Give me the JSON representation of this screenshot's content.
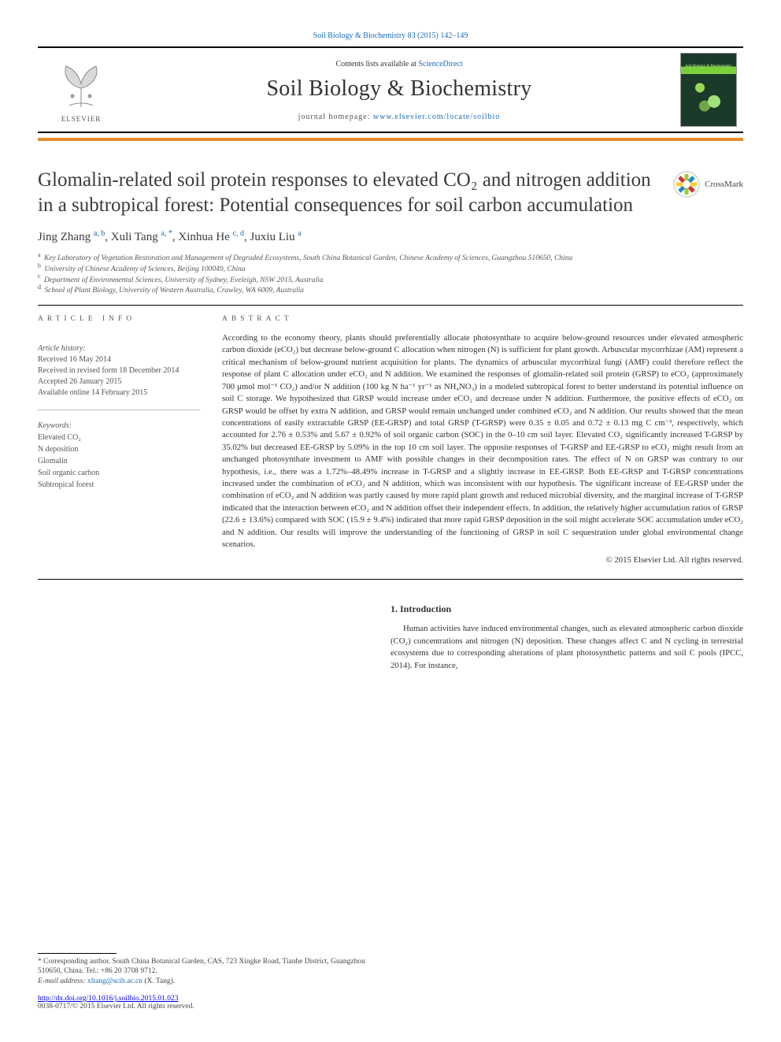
{
  "colors": {
    "link": "#1a6bb8",
    "text": "#333333",
    "muted": "#555555",
    "orange": "#e58b2e",
    "border": "#000000",
    "background": "#ffffff"
  },
  "top_citation": "Soil Biology & Biochemistry 83 (2015) 142–149",
  "header": {
    "publisher_word": "ELSEVIER",
    "contents": "Contents lists available at ",
    "contents_link": "ScienceDirect",
    "journal": "Soil Biology & Biochemistry",
    "homepage_prefix": "journal homepage: ",
    "homepage_url": "www.elsevier.com/locate/soilbio",
    "cover_label": "Soil Biology & Biochemistry"
  },
  "crossmark_label": "CrossMark",
  "title": "Glomalin-related soil protein responses to elevated CO₂ and nitrogen addition in a subtropical forest: Potential consequences for soil carbon accumulation",
  "authors_html": "Jing Zhang <sup>a, b</sup>, Xuli Tang <sup>a, *</sup>, Xinhua He <sup>c, d</sup>, Juxiu Liu <sup>a</sup>",
  "affiliations": [
    {
      "sup": "a",
      "text": "Key Laboratory of Vegetation Restoration and Management of Degraded Ecosystems, South China Botanical Garden, Chinese Academy of Sciences, Guangzhou 510650, China"
    },
    {
      "sup": "b",
      "text": "University of Chinese Academy of Sciences, Beijing 100049, China"
    },
    {
      "sup": "c",
      "text": "Department of Environmental Sciences, University of Sydney, Eveleigh, NSW 2015, Australia"
    },
    {
      "sup": "d",
      "text": "School of Plant Biology, University of Western Australia, Crawley, WA 6009, Australia"
    }
  ],
  "article_info_head": "ARTICLE INFO",
  "abstract_head": "ABSTRACT",
  "history": {
    "label": "Article history:",
    "received": "Received 16 May 2014",
    "revised": "Received in revised form 18 December 2014",
    "accepted": "Accepted 26 January 2015",
    "online": "Available online 14 February 2015"
  },
  "keywords_label": "Keywords:",
  "keywords": [
    "Elevated CO₂",
    "N deposition",
    "Glomalin",
    "Soil organic carbon",
    "Subtropical forest"
  ],
  "abstract": "According to the economy theory, plants should preferentially allocate photosynthate to acquire below-ground resources under elevated atmospheric carbon dioxide (eCO₂) but decrease below-ground C allocation when nitrogen (N) is sufficient for plant growth. Arbuscular mycorrhizae (AM) represent a critical mechanism of below-ground nutrient acquisition for plants. The dynamics of arbuscular mycorrhizal fungi (AMF) could therefore reflect the response of plant C allocation under eCO₂ and N addition. We examined the responses of glomalin-related soil protein (GRSP) to eCO₂ (approximately 700 μmol mol⁻¹ CO₂) and/or N addition (100 kg N ha⁻¹ yr⁻¹ as NH₄NO₃) in a modeled subtropical forest to better understand its potential influence on soil C storage. We hypothesized that GRSP would increase under eCO₂ and decrease under N addition. Furthermore, the positive effects of eCO₂ on GRSP would be offset by extra N addition, and GRSP would remain unchanged under combined eCO₂ and N addition. Our results showed that the mean concentrations of easily extractable GRSP (EE-GRSP) and total GRSP (T-GRSP) were 0.35 ± 0.05 and 0.72 ± 0.13 mg C cm⁻³, respectively, which accounted for 2.76 ± 0.53% and 5.67 ± 0.92% of soil organic carbon (SOC) in the 0–10 cm soil layer. Elevated CO₂ significantly increased T-GRSP by 35.02% but decreased EE-GRSP by 5.09% in the top 10 cm soil layer. The opposite responses of T-GRSP and EE-GRSP to eCO₂ might result from an unchanged photosynthate investment to AMF with possible changes in their decomposition rates. The effect of N on GRSP was contrary to our hypothesis, i.e., there was a 1.72%–48.49% increase in T-GRSP and a slightly increase in EE-GRSP. Both EE-GRSP and T-GRSP concentrations increased under the combination of eCO₂ and N addition, which was inconsistent with our hypothesis. The significant increase of EE-GRSP under the combination of eCO₂ and N addition was partly caused by more rapid plant growth and reduced microbial diversity, and the marginal increase of T-GRSP indicated that the interaction between eCO₂ and N addition offset their independent effects. In addition, the relatively higher accumulation ratios of GRSP (22.6 ± 13.6%) compared with SOC (15.9 ± 9.4%) indicated that more rapid GRSP deposition in the soil might accelerate SOC accumulation under eCO₂ and N addition. Our results will improve the understanding of the functioning of GRSP in soil C sequestration under global environmental change scenarios.",
  "copyright": "© 2015 Elsevier Ltd. All rights reserved.",
  "intro_head": "1.  Introduction",
  "intro_body": "Human activities have induced environmental changes, such as elevated atmospheric carbon dioxide (CO₂) concentrations and nitrogen (N) deposition. These changes affect C and N cycling in terrestrial ecosystems due to corresponding alterations of plant photosynthetic patterns and soil C pools (IPCC, 2014). For instance,",
  "footnote": {
    "corr": "* Corresponding author. South China Botanical Garden, CAS, 723 Xingke Road, Tianhe District, Guangzhou 510650, China. Tel.: +86 20 3708 9712.",
    "email_label": "E-mail address: ",
    "email": "xltang@scib.ac.cn",
    "email_paren": " (X. Tang)."
  },
  "doi": "http://dx.doi.org/10.1016/j.soilbio.2015.01.023",
  "issn_line": "0038-0717/© 2015 Elsevier Ltd. All rights reserved."
}
